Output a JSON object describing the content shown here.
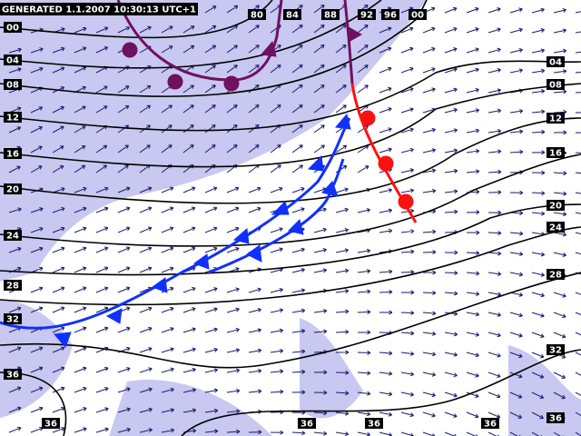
{
  "header": {
    "generated": "GENERATED 1.1.2007 10:30:13 UTC+1"
  },
  "isobar_labels": {
    "top": [
      "80",
      "84",
      "88",
      "92",
      "96",
      "00"
    ],
    "left": [
      "00",
      "04",
      "08",
      "12",
      "16",
      "20",
      "24",
      "28",
      "32",
      "36"
    ],
    "right": [
      "04",
      "08",
      "12",
      "16",
      "20",
      "24",
      "28",
      "32"
    ],
    "bottom": [
      "36",
      "36",
      "36",
      "36",
      "36"
    ]
  }
}
